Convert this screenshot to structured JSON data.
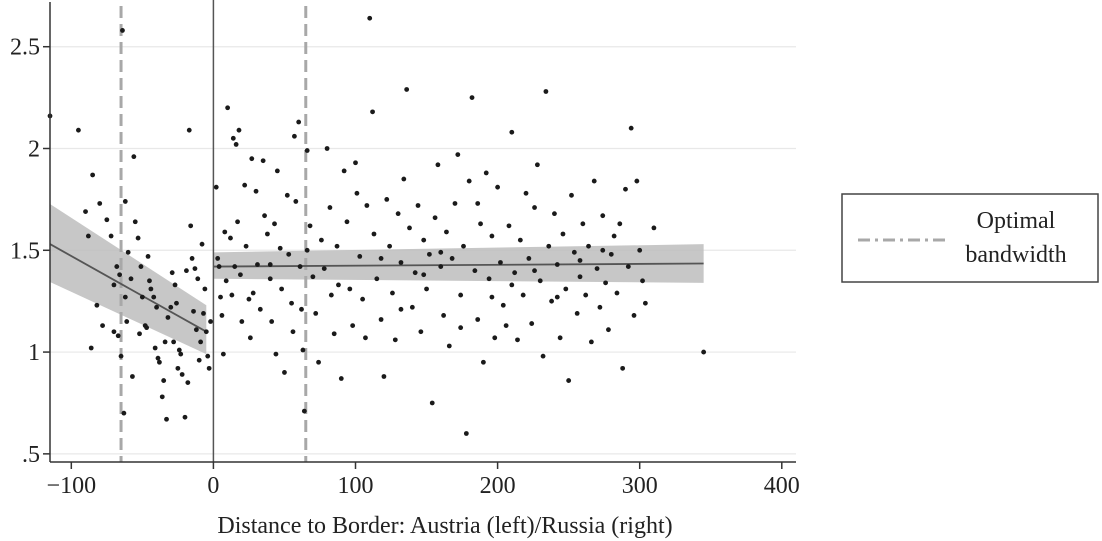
{
  "chart_data": {
    "type": "scatter",
    "xlabel": "Distance to Border: Austria (left)/Russia (right)",
    "ylabel": "",
    "xlim": [
      -115,
      410
    ],
    "ylim": [
      0.46,
      2.7
    ],
    "x_ticks": [
      -100,
      0,
      100,
      200,
      300,
      400
    ],
    "x_tick_labels": [
      "−100",
      "0",
      "100",
      "200",
      "300",
      "400"
    ],
    "y_ticks": [
      0.5,
      1,
      1.5,
      2,
      2.5
    ],
    "y_tick_labels": [
      ".5",
      "1",
      "1.5",
      "2",
      "2.5"
    ],
    "grid": "horizontal",
    "legend_placement": "right",
    "border_x": 0,
    "bandwidth_lines": [
      -65,
      65
    ],
    "legend": {
      "label_line1": "Optimal",
      "label_line2": "bandwidth"
    },
    "fits": [
      {
        "side": "left",
        "x": [
          -120,
          -5
        ],
        "y": [
          1.55,
          1.1
        ],
        "ci_lower": [
          1.36,
          0.99
        ],
        "ci_upper": [
          1.75,
          1.23
        ]
      },
      {
        "side": "right",
        "x": [
          0,
          345
        ],
        "y": [
          1.42,
          1.435
        ],
        "ci_lower": [
          1.36,
          1.34
        ],
        "ci_upper": [
          1.49,
          1.53
        ]
      }
    ],
    "colors": {
      "points": "#1a1a1a",
      "fit_line": "#555555",
      "ci_band": "#bdbdbd",
      "bandwidth_line": "#a8a8a8",
      "border_line": "#555555",
      "grid": "#e8e8e8"
    },
    "points": [
      [
        -120,
        2.16
      ],
      [
        -95,
        2.09
      ],
      [
        -90,
        1.69
      ],
      [
        -85,
        1.87
      ],
      [
        -80,
        1.73
      ],
      [
        -75,
        1.65
      ],
      [
        -88,
        1.57
      ],
      [
        -72,
        1.57
      ],
      [
        -82,
        1.23
      ],
      [
        -78,
        1.13
      ],
      [
        -86,
        1.02
      ],
      [
        -70,
        1.33
      ],
      [
        -68,
        1.42
      ],
      [
        -66,
        1.38
      ],
      [
        -64,
        2.58
      ],
      [
        -62,
        1.74
      ],
      [
        -60,
        1.49
      ],
      [
        -58,
        1.36
      ],
      [
        -56,
        1.96
      ],
      [
        -55,
        1.64
      ],
      [
        -53,
        1.56
      ],
      [
        -51,
        1.42
      ],
      [
        -50,
        1.27
      ],
      [
        -48,
        1.13
      ],
      [
        -46,
        1.47
      ],
      [
        -44,
        1.31
      ],
      [
        -42,
        1.27
      ],
      [
        -41,
        1.02
      ],
      [
        -39,
        0.97
      ],
      [
        -38,
        0.95
      ],
      [
        -36,
        0.78
      ],
      [
        -35,
        0.86
      ],
      [
        -33,
        0.67
      ],
      [
        -32,
        1.17
      ],
      [
        -30,
        1.22
      ],
      [
        -28,
        1.05
      ],
      [
        -27,
        1.33
      ],
      [
        -25,
        0.92
      ],
      [
        -23,
        0.99
      ],
      [
        -22,
        0.89
      ],
      [
        -20,
        0.68
      ],
      [
        -19,
        1.4
      ],
      [
        -17,
        2.09
      ],
      [
        -16,
        1.62
      ],
      [
        -15,
        1.46
      ],
      [
        -14,
        1.2
      ],
      [
        -12,
        1.11
      ],
      [
        -10,
        0.96
      ],
      [
        -9,
        1.05
      ],
      [
        -8,
        1.53
      ],
      [
        -6,
        1.31
      ],
      [
        -5,
        1.1
      ],
      [
        -4,
        0.98
      ],
      [
        -3,
        0.92
      ],
      [
        -2,
        1.15
      ],
      [
        -65,
        0.98
      ],
      [
        -63,
        0.7
      ],
      [
        -70,
        1.1
      ],
      [
        -67,
        1.08
      ],
      [
        -57,
        0.88
      ],
      [
        -52,
        1.09
      ],
      [
        -45,
        1.35
      ],
      [
        -40,
        1.22
      ],
      [
        -29,
        1.39
      ],
      [
        -24,
        1.01
      ],
      [
        -18,
        0.85
      ],
      [
        -11,
        1.36
      ],
      [
        -62,
        1.27
      ],
      [
        -61,
        1.15
      ],
      [
        -47,
        1.12
      ],
      [
        -34,
        1.05
      ],
      [
        -26,
        1.24
      ],
      [
        -13,
        1.41
      ],
      [
        -7,
        1.19
      ],
      [
        2,
        1.81
      ],
      [
        3,
        1.46
      ],
      [
        4,
        1.42
      ],
      [
        5,
        1.27
      ],
      [
        6,
        1.18
      ],
      [
        7,
        0.99
      ],
      [
        8,
        1.59
      ],
      [
        9,
        1.35
      ],
      [
        10,
        2.2
      ],
      [
        12,
        1.56
      ],
      [
        13,
        1.28
      ],
      [
        14,
        2.05
      ],
      [
        15,
        1.42
      ],
      [
        16,
        2.02
      ],
      [
        17,
        1.64
      ],
      [
        18,
        2.09
      ],
      [
        19,
        1.38
      ],
      [
        20,
        1.15
      ],
      [
        22,
        1.82
      ],
      [
        23,
        1.52
      ],
      [
        25,
        1.26
      ],
      [
        26,
        1.07
      ],
      [
        27,
        1.95
      ],
      [
        28,
        1.29
      ],
      [
        30,
        1.79
      ],
      [
        31,
        1.43
      ],
      [
        33,
        1.21
      ],
      [
        35,
        1.94
      ],
      [
        36,
        1.67
      ],
      [
        38,
        1.58
      ],
      [
        40,
        1.36
      ],
      [
        41,
        1.15
      ],
      [
        43,
        1.63
      ],
      [
        44,
        0.99
      ],
      [
        45,
        1.89
      ],
      [
        47,
        1.51
      ],
      [
        48,
        1.31
      ],
      [
        50,
        0.9
      ],
      [
        52,
        1.77
      ],
      [
        53,
        1.48
      ],
      [
        55,
        1.24
      ],
      [
        56,
        1.1
      ],
      [
        57,
        2.06
      ],
      [
        58,
        1.74
      ],
      [
        60,
        2.13
      ],
      [
        61,
        1.42
      ],
      [
        62,
        1.21
      ],
      [
        63,
        1.01
      ],
      [
        64,
        0.71
      ],
      [
        66,
        1.99
      ],
      [
        68,
        1.62
      ],
      [
        70,
        1.37
      ],
      [
        72,
        1.19
      ],
      [
        74,
        0.95
      ],
      [
        76,
        1.55
      ],
      [
        78,
        1.41
      ],
      [
        80,
        2.0
      ],
      [
        82,
        1.71
      ],
      [
        83,
        1.28
      ],
      [
        85,
        1.09
      ],
      [
        87,
        1.52
      ],
      [
        90,
        0.87
      ],
      [
        92,
        1.89
      ],
      [
        94,
        1.64
      ],
      [
        96,
        1.31
      ],
      [
        98,
        1.13
      ],
      [
        100,
        1.93
      ],
      [
        101,
        1.78
      ],
      [
        103,
        1.47
      ],
      [
        105,
        1.26
      ],
      [
        107,
        1.07
      ],
      [
        108,
        1.72
      ],
      [
        110,
        2.64
      ],
      [
        112,
        2.18
      ],
      [
        113,
        1.58
      ],
      [
        115,
        1.36
      ],
      [
        118,
        1.16
      ],
      [
        120,
        0.88
      ],
      [
        122,
        1.75
      ],
      [
        124,
        1.52
      ],
      [
        126,
        1.29
      ],
      [
        128,
        1.06
      ],
      [
        130,
        1.68
      ],
      [
        132,
        1.44
      ],
      [
        134,
        1.85
      ],
      [
        136,
        2.29
      ],
      [
        138,
        1.61
      ],
      [
        140,
        1.22
      ],
      [
        142,
        1.39
      ],
      [
        144,
        1.72
      ],
      [
        146,
        1.1
      ],
      [
        148,
        1.55
      ],
      [
        150,
        1.31
      ],
      [
        152,
        1.48
      ],
      [
        154,
        0.75
      ],
      [
        156,
        1.66
      ],
      [
        158,
        1.92
      ],
      [
        160,
        1.42
      ],
      [
        162,
        1.18
      ],
      [
        164,
        1.59
      ],
      [
        166,
        1.03
      ],
      [
        168,
        1.46
      ],
      [
        170,
        1.73
      ],
      [
        172,
        1.97
      ],
      [
        174,
        1.28
      ],
      [
        176,
        1.52
      ],
      [
        178,
        0.6
      ],
      [
        180,
        1.84
      ],
      [
        182,
        2.25
      ],
      [
        184,
        1.4
      ],
      [
        186,
        1.16
      ],
      [
        188,
        1.63
      ],
      [
        190,
        0.95
      ],
      [
        192,
        1.88
      ],
      [
        194,
        1.36
      ],
      [
        196,
        1.57
      ],
      [
        198,
        1.07
      ],
      [
        200,
        1.81
      ],
      [
        202,
        1.44
      ],
      [
        204,
        1.23
      ],
      [
        206,
        1.13
      ],
      [
        208,
        1.62
      ],
      [
        210,
        2.08
      ],
      [
        212,
        1.39
      ],
      [
        214,
        1.06
      ],
      [
        216,
        1.55
      ],
      [
        218,
        1.28
      ],
      [
        220,
        1.78
      ],
      [
        222,
        1.46
      ],
      [
        224,
        1.14
      ],
      [
        226,
        1.71
      ],
      [
        228,
        1.92
      ],
      [
        230,
        1.35
      ],
      [
        232,
        0.98
      ],
      [
        234,
        2.28
      ],
      [
        236,
        1.52
      ],
      [
        238,
        1.25
      ],
      [
        240,
        1.68
      ],
      [
        242,
        1.43
      ],
      [
        244,
        1.07
      ],
      [
        246,
        1.58
      ],
      [
        248,
        1.31
      ],
      [
        250,
        0.86
      ],
      [
        252,
        1.77
      ],
      [
        254,
        1.49
      ],
      [
        256,
        1.19
      ],
      [
        258,
        1.37
      ],
      [
        260,
        1.63
      ],
      [
        262,
        1.28
      ],
      [
        264,
        1.52
      ],
      [
        266,
        1.05
      ],
      [
        268,
        1.84
      ],
      [
        270,
        1.41
      ],
      [
        272,
        1.22
      ],
      [
        274,
        1.67
      ],
      [
        276,
        1.34
      ],
      [
        278,
        1.11
      ],
      [
        280,
        1.48
      ],
      [
        282,
        1.57
      ],
      [
        284,
        1.29
      ],
      [
        286,
        1.63
      ],
      [
        288,
        0.92
      ],
      [
        290,
        1.8
      ],
      [
        292,
        1.42
      ],
      [
        294,
        2.1
      ],
      [
        296,
        1.18
      ],
      [
        298,
        1.84
      ],
      [
        300,
        1.5
      ],
      [
        302,
        1.35
      ],
      [
        304,
        1.24
      ],
      [
        310,
        1.61
      ],
      [
        345,
        1.0
      ],
      [
        186,
        1.73
      ],
      [
        174,
        1.12
      ],
      [
        148,
        1.38
      ],
      [
        132,
        1.21
      ],
      [
        118,
        1.46
      ],
      [
        88,
        1.33
      ],
      [
        66,
        1.5
      ],
      [
        40,
        1.43
      ],
      [
        210,
        1.33
      ],
      [
        226,
        1.4
      ],
      [
        242,
        1.27
      ],
      [
        258,
        1.45
      ],
      [
        274,
        1.5
      ],
      [
        160,
        1.49
      ],
      [
        196,
        1.27
      ]
    ]
  }
}
